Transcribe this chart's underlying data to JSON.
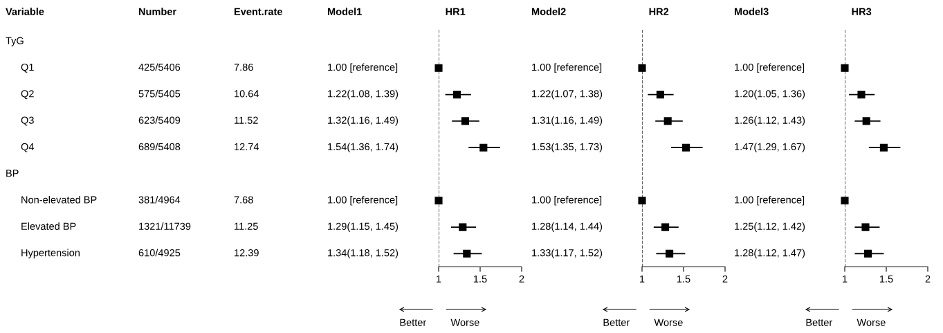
{
  "chart_data": [
    {
      "type": "other",
      "title": "Variable",
      "categories": [
        "TyG",
        "Q1",
        "Q2",
        "Q3",
        "Q4",
        "BP",
        "Non-elevated BP",
        "Elevated BP",
        "Hypertension"
      ],
      "data_labels": true,
      "series": [
        {
          "name": "Number",
          "values": [
            null,
            425,
            575,
            623,
            689,
            null,
            381,
            1321,
            610
          ],
          "value_labels": [
            null,
            "425/5406",
            "575/5405",
            "623/5409",
            "689/5408",
            null,
            "381/4964",
            "1321/11739",
            "610/4925"
          ]
        },
        {
          "name": "Event.rate",
          "values": [
            null,
            7.86,
            10.64,
            11.52,
            12.74,
            null,
            7.68,
            11.25,
            12.39
          ]
        }
      ]
    },
    {
      "type": "other",
      "series": [
        {
          "name": "Model1",
          "values": [
            null,
            1.0,
            1.22,
            1.32,
            1.54,
            null,
            1.0,
            1.29,
            1.34
          ],
          "value_labels": [
            null,
            "1.00 [reference]",
            "1.22(1.08, 1.39)",
            "1.32(1.16, 1.49)",
            "1.54(1.36, 1.74)",
            null,
            "1.00 [reference]",
            "1.29(1.15, 1.45)",
            "1.34(1.18, 1.52)"
          ]
        }
      ]
    },
    {
      "type": "scatter",
      "orientation": "horizontal",
      "title": "HR1",
      "categories": [
        null,
        null,
        null,
        null,
        null,
        null,
        null,
        null,
        null
      ],
      "tick_labels": "x",
      "marker": "square",
      "xlim": [
        1,
        2
      ],
      "xticks": [
        1,
        1.5,
        2
      ],
      "values": [
        null,
        1.0,
        1.22,
        1.32,
        1.54,
        null,
        1.0,
        1.29,
        1.34
      ],
      "errors": [
        null,
        null,
        [
          1.08,
          1.39
        ],
        [
          1.16,
          1.49
        ],
        [
          1.36,
          1.74
        ],
        null,
        null,
        [
          1.15,
          1.45
        ],
        [
          1.18,
          1.52
        ]
      ],
      "ref_lines": [
        {
          "axis": "x",
          "value": 1,
          "line_style": "dashed"
        }
      ],
      "annotations": [
        "Better",
        "Worse"
      ]
    },
    {
      "type": "other",
      "series": [
        {
          "name": "Model2",
          "values": [
            null,
            1.0,
            1.22,
            1.31,
            1.53,
            null,
            1.0,
            1.28,
            1.33
          ],
          "value_labels": [
            null,
            "1.00 [reference]",
            "1.22(1.07, 1.38)",
            "1.31(1.16, 1.49)",
            "1.53(1.35, 1.73)",
            null,
            "1.00 [reference]",
            "1.28(1.14, 1.44)",
            "1.33(1.17, 1.52)"
          ]
        }
      ]
    },
    {
      "type": "scatter",
      "orientation": "horizontal",
      "title": "HR2",
      "categories": [
        null,
        null,
        null,
        null,
        null,
        null,
        null,
        null,
        null
      ],
      "tick_labels": "x",
      "marker": "square",
      "xlim": [
        1,
        2
      ],
      "xticks": [
        1,
        1.5,
        2
      ],
      "values": [
        null,
        1.0,
        1.22,
        1.31,
        1.53,
        null,
        1.0,
        1.28,
        1.33
      ],
      "errors": [
        null,
        null,
        [
          1.07,
          1.38
        ],
        [
          1.16,
          1.49
        ],
        [
          1.35,
          1.73
        ],
        null,
        null,
        [
          1.14,
          1.44
        ],
        [
          1.17,
          1.52
        ]
      ],
      "ref_lines": [
        {
          "axis": "x",
          "value": 1,
          "line_style": "dashed"
        }
      ],
      "annotations": [
        "Better",
        "Worse"
      ]
    },
    {
      "type": "other",
      "series": [
        {
          "name": "Model3",
          "values": [
            null,
            1.0,
            1.2,
            1.26,
            1.47,
            null,
            1.0,
            1.25,
            1.28
          ],
          "value_labels": [
            null,
            "1.00 [reference]",
            "1.20(1.05, 1.36)",
            "1.26(1.12, 1.43)",
            "1.47(1.29, 1.67)",
            null,
            "1.00 [reference]",
            "1.25(1.12, 1.42)",
            "1.28(1.12, 1.47)"
          ]
        }
      ]
    },
    {
      "type": "scatter",
      "orientation": "horizontal",
      "title": "HR3",
      "categories": [
        null,
        null,
        null,
        null,
        null,
        null,
        null,
        null,
        null
      ],
      "tick_labels": "x",
      "marker": "square",
      "xlim": [
        1,
        2
      ],
      "xticks": [
        1,
        1.5,
        2
      ],
      "values": [
        null,
        1.0,
        1.2,
        1.26,
        1.47,
        null,
        1.0,
        1.25,
        1.28
      ],
      "errors": [
        null,
        null,
        [
          1.05,
          1.36
        ],
        [
          1.12,
          1.43
        ],
        [
          1.29,
          1.67
        ],
        null,
        null,
        [
          1.12,
          1.42
        ],
        [
          1.12,
          1.47
        ]
      ],
      "ref_lines": [
        {
          "axis": "x",
          "value": 1,
          "line_style": "dashed"
        }
      ],
      "annotations": [
        "Better",
        "Worse"
      ]
    }
  ]
}
